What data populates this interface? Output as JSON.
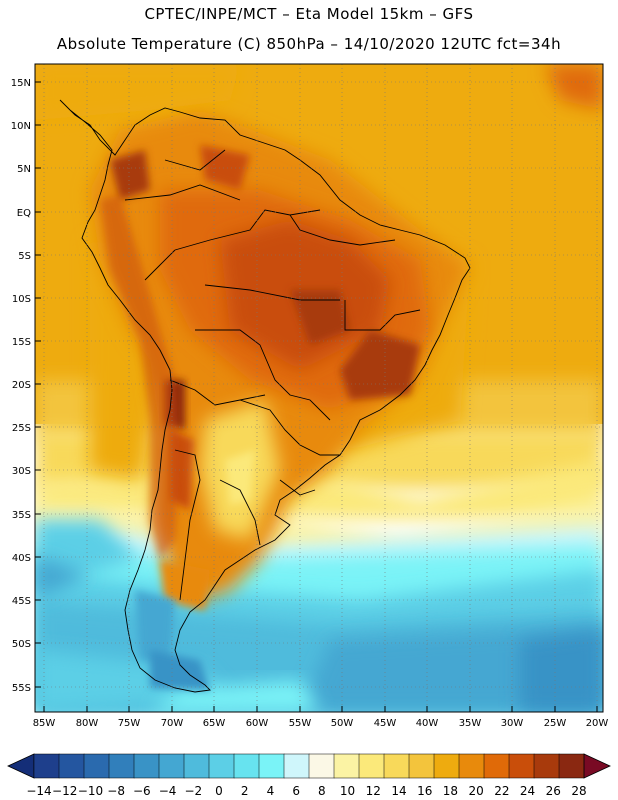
{
  "header": {
    "line1": "CPTEC/INPE/MCT –   Eta Model 15km – GFS",
    "line2": "Absolute Temperature (C) 850hPa – 14/10/2020 12UTC fct=34h"
  },
  "map": {
    "latitude_labels": [
      "15N",
      "10N",
      "5N",
      "EQ",
      "5S",
      "10S",
      "15S",
      "20S",
      "25S",
      "30S",
      "35S",
      "40S",
      "45S",
      "50S",
      "55S"
    ],
    "longitude_labels": [
      "85W",
      "80W",
      "75W",
      "70W",
      "65W",
      "60W",
      "55W",
      "50W",
      "45W",
      "40W",
      "35W",
      "30W",
      "25W",
      "20W"
    ]
  },
  "colorbar": {
    "labels": [
      "-14",
      "-12",
      "-10",
      "-8",
      "-6",
      "-4",
      "-2",
      "0",
      "2",
      "4",
      "6",
      "8",
      "10",
      "12",
      "14",
      "16",
      "18",
      "20",
      "22",
      "24",
      "26",
      "28"
    ],
    "colors": [
      "#1e3f8c",
      "#2456a0",
      "#2a6aae",
      "#317fbb",
      "#3993c6",
      "#44a7d2",
      "#4fbbdc",
      "#5ccfe6",
      "#67e3ef",
      "#7af3f7",
      "#cff6fb",
      "#fbf8e6",
      "#fbf3a4",
      "#fbe97a",
      "#f8d95a",
      "#f3c43c",
      "#eeab0f",
      "#e88a0c",
      "#e06a08",
      "#c94e0a",
      "#a83a0c",
      "#8a2811"
    ],
    "under_color": "#142e78",
    "over_color": "#790a24"
  }
}
